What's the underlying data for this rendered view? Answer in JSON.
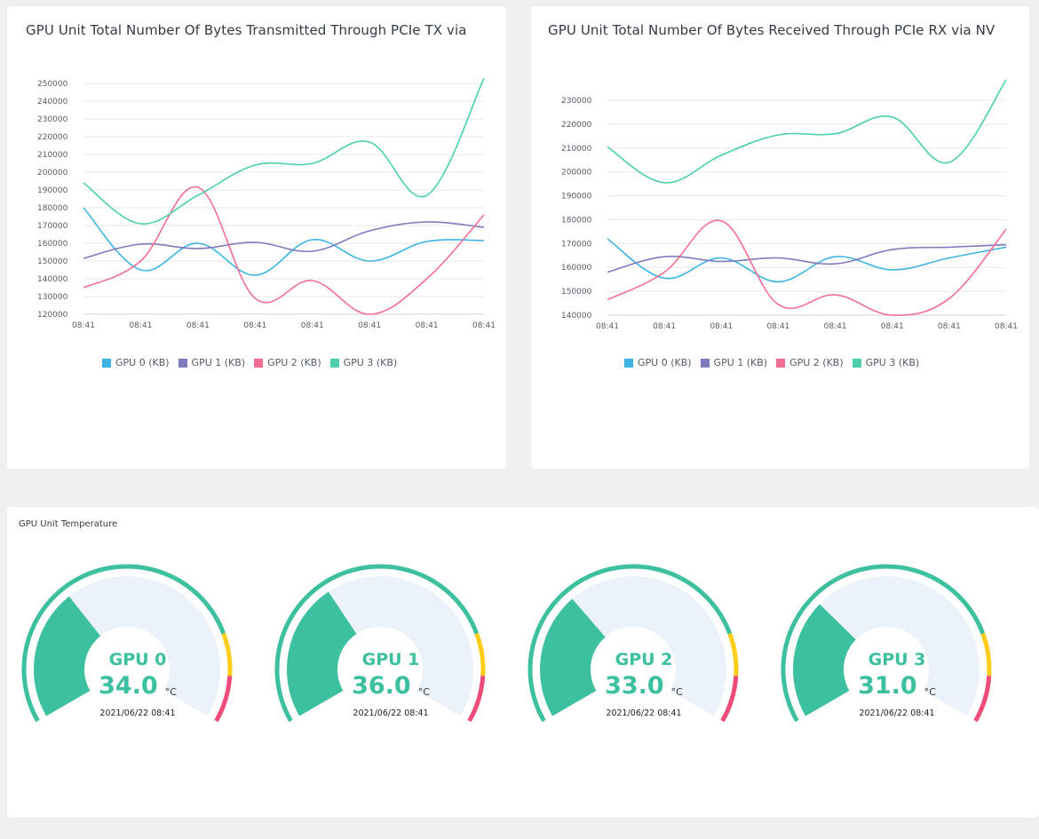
{
  "charts": {
    "tx": {
      "title": "GPU Unit Total Number Of Bytes Transmitted Through PCIe TX via"
    },
    "rx": {
      "title": "GPU Unit Total Number Of Bytes Received Through PCIe RX via NV"
    }
  },
  "chart_data": [
    {
      "type": "line",
      "title": "GPU Unit Total Number Of Bytes Transmitted Through PCIe TX via",
      "xlabel": "",
      "ylabel": "",
      "categories": [
        "08:41",
        "08:41",
        "08:41",
        "08:41",
        "08:41",
        "08:41",
        "08:41",
        "08:41"
      ],
      "ylim": [
        120000,
        250000
      ],
      "yticks": [
        "120000",
        "130000",
        "140000",
        "150000",
        "160000",
        "170000",
        "180000",
        "190000",
        "200000",
        "210000",
        "220000",
        "230000",
        "240000",
        "250000"
      ],
      "grid": true,
      "legend": "bottom",
      "series": [
        {
          "name": "GPU 0 (KB)",
          "color": "#3db3e3",
          "values": [
            180000,
            145000,
            160000,
            142000,
            162000,
            150000,
            161000,
            161500
          ]
        },
        {
          "name": "GPU 1 (KB)",
          "color": "#7d7bbd",
          "values": [
            151500,
            159500,
            157000,
            160500,
            155500,
            167000,
            172000,
            169000
          ]
        },
        {
          "name": "GPU 2 (KB)",
          "color": "#f46e94",
          "values": [
            135000,
            150000,
            191500,
            129000,
            139000,
            120000,
            140000,
            176000
          ]
        },
        {
          "name": "GPU 3 (KB)",
          "color": "#4ccfad",
          "values": [
            194000,
            171000,
            187000,
            204000,
            205000,
            217000,
            187000,
            253000
          ]
        }
      ]
    },
    {
      "type": "line",
      "title": "GPU Unit Total Number Of Bytes Received Through PCIe RX via NV",
      "xlabel": "",
      "ylabel": "",
      "categories": [
        "08:41",
        "08:41",
        "08:41",
        "08:41",
        "08:41",
        "08:41",
        "08:41",
        "08:41"
      ],
      "ylim": [
        140000,
        230000
      ],
      "yticks": [
        "140000",
        "150000",
        "160000",
        "170000",
        "180000",
        "190000",
        "200000",
        "210000",
        "220000",
        "230000"
      ],
      "grid": true,
      "legend": "bottom",
      "series": [
        {
          "name": "GPU 0 (KB)",
          "color": "#3db3e3",
          "values": [
            172000,
            155500,
            164000,
            154000,
            164500,
            159000,
            164000,
            168500
          ]
        },
        {
          "name": "GPU 1 (KB)",
          "color": "#7d7bbd",
          "values": [
            158000,
            164500,
            162500,
            164000,
            161500,
            167500,
            168500,
            169500
          ]
        },
        {
          "name": "GPU 2 (KB)",
          "color": "#f46e94",
          "values": [
            146500,
            158000,
            179500,
            144500,
            148500,
            140000,
            147000,
            176000
          ]
        },
        {
          "name": "GPU 3 (KB)",
          "color": "#4ccfad",
          "values": [
            210500,
            195500,
            207000,
            215500,
            216000,
            223000,
            204000,
            238500
          ]
        }
      ]
    }
  ],
  "temperature": {
    "title": "GPU Unit Temperature",
    "unit": "°C",
    "max_temp": 100,
    "gauges": [
      {
        "name": "GPU 0",
        "value": "34.0",
        "fill": 34.0,
        "time": "2021/06/22 08:41"
      },
      {
        "name": "GPU 1",
        "value": "36.0",
        "fill": 36.0,
        "time": "2021/06/22 08:41"
      },
      {
        "name": "GPU 2",
        "value": "33.0",
        "fill": 33.0,
        "time": "2021/06/22 08:41"
      },
      {
        "name": "GPU 3",
        "value": "31.0",
        "fill": 31.0,
        "time": "2021/06/22 08:41"
      }
    ],
    "colors": {
      "ok": "#3cc09f",
      "warn": "#ffcc1a",
      "danger": "#ef4b7a",
      "track": "#ebf2fa"
    }
  }
}
